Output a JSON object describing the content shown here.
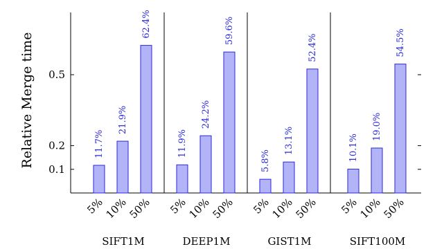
{
  "chart_data": {
    "type": "bar",
    "ylabel": "Relative Merge time",
    "groups": [
      "SIFT1M",
      "DEEP1M",
      "GIST1M",
      "SIFT100M"
    ],
    "categories": [
      "5%",
      "10%",
      "50%"
    ],
    "series": [
      {
        "group": "SIFT1M",
        "values": [
          0.117,
          0.219,
          0.624
        ],
        "labels": [
          "11.7%",
          "21.9%",
          "62.4%"
        ]
      },
      {
        "group": "DEEP1M",
        "values": [
          0.119,
          0.242,
          0.596
        ],
        "labels": [
          "11.9%",
          "24.2%",
          "59.6%"
        ]
      },
      {
        "group": "GIST1M",
        "values": [
          0.058,
          0.131,
          0.524
        ],
        "labels": [
          "5.8%",
          "13.1%",
          "52.4%"
        ]
      },
      {
        "group": "SIFT100M",
        "values": [
          0.101,
          0.19,
          0.545
        ],
        "labels": [
          "10.1%",
          "19.0%",
          "54.5%"
        ]
      }
    ],
    "yticks": [
      0.1,
      0.2,
      0.5
    ],
    "ytick_labels": [
      "0.1",
      "0.2",
      "0.5"
    ],
    "ylim": [
      0,
      0.8
    ],
    "bar_color": "#b3b3f7",
    "bar_edge_color": "#2a2adb",
    "label_color": "#2a2adb",
    "grid": false,
    "legend": "none"
  }
}
